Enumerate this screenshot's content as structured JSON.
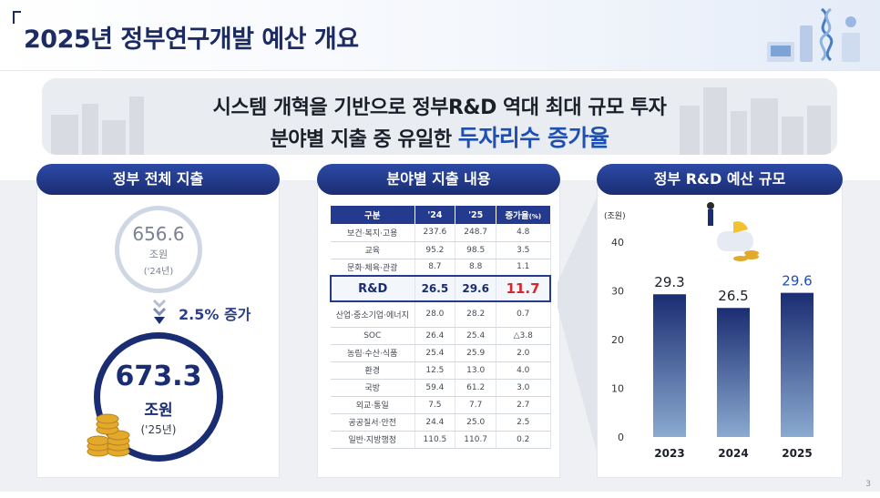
{
  "header": {
    "title": "2025년 정부연구개발 예산 개요"
  },
  "banner": {
    "line1": "시스템 개혁을 기반으로 정부R&D 역대 최대 규모 투자",
    "line2_prefix": "분야별 지출 중 유일한 ",
    "line2_highlight": "두자리수 증가율"
  },
  "panel_total": {
    "heading": "정부 전체 지출",
    "prev_value": "656.6",
    "prev_unit": "조원",
    "prev_year": "('24년)",
    "increase": "2.5% 증가",
    "curr_value": "673.3",
    "curr_unit": "조원",
    "curr_year": "('25년)"
  },
  "panel_table": {
    "heading": "분야별 지출 내용",
    "columns": [
      "구분",
      "'24",
      "'25",
      "증가율",
      "(%)"
    ],
    "rows": [
      [
        "보건·복지·고용",
        "237.6",
        "248.7",
        "4.8"
      ],
      [
        "교육",
        "95.2",
        "98.5",
        "3.5"
      ],
      [
        "문화·체육·관광",
        "8.7",
        "8.8",
        "1.1"
      ],
      [
        "R&D",
        "26.5",
        "29.6",
        "11.7"
      ],
      [
        "산업·중소기업·에너지",
        "28.0",
        "28.2",
        "0.7"
      ],
      [
        "SOC",
        "26.4",
        "25.4",
        "△3.8"
      ],
      [
        "농림·수산·식품",
        "25.4",
        "25.9",
        "2.0"
      ],
      [
        "환경",
        "12.5",
        "13.0",
        "4.0"
      ],
      [
        "국방",
        "59.4",
        "61.2",
        "3.0"
      ],
      [
        "외교·통일",
        "7.5",
        "7.7",
        "2.7"
      ],
      [
        "공공질서·안전",
        "24.4",
        "25.0",
        "2.5"
      ],
      [
        "일반·지방행정",
        "110.5",
        "110.7",
        "0.2"
      ]
    ]
  },
  "panel_chart": {
    "heading": "정부 R&D 예산 규모"
  },
  "chart_data": {
    "type": "bar",
    "categories": [
      "2023",
      "2024",
      "2025"
    ],
    "values": [
      29.3,
      26.5,
      29.6
    ],
    "value_labels": [
      "29.3",
      "26.5",
      "29.6"
    ],
    "ylabel": "(조원)",
    "ylim": [
      0,
      40
    ],
    "yticks": [
      0,
      10,
      20,
      30,
      40
    ],
    "grid": false,
    "bar_color_top": "#1b2d72",
    "bar_color_bottom": "#8aaad0"
  },
  "page_number": "3"
}
